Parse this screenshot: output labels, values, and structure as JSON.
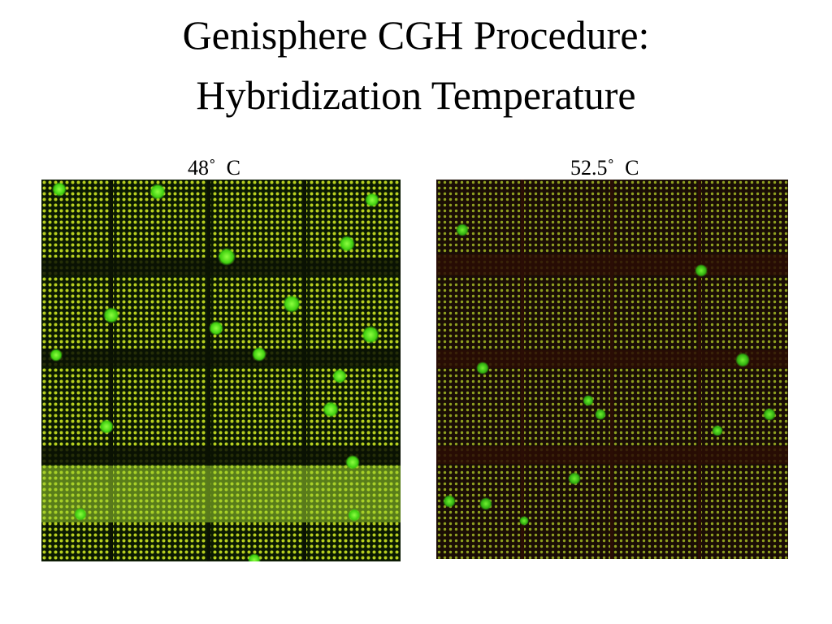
{
  "header": {
    "title_line1": "Genisphere CGH Procedure:",
    "title_line2": "Hybridization Temperature"
  },
  "panels": [
    {
      "label": "48˚  C"
    },
    {
      "label": "52.5˚  C"
    }
  ]
}
